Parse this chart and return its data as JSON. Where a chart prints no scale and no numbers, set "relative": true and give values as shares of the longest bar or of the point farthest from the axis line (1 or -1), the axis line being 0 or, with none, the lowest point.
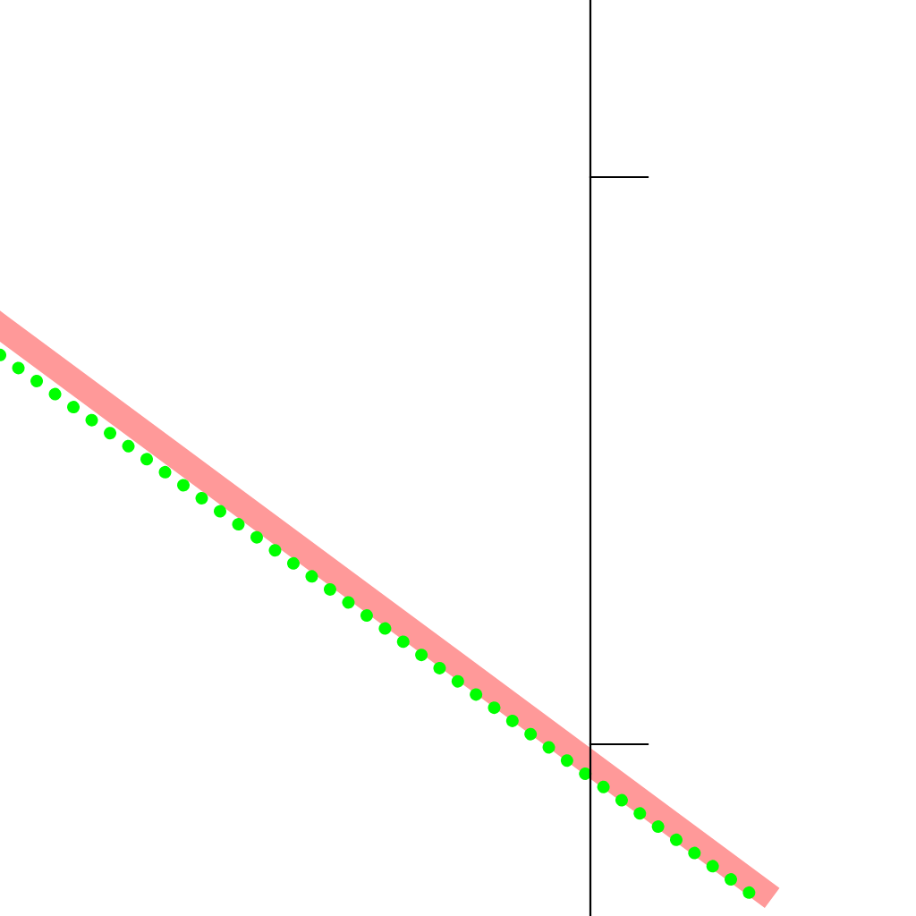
{
  "chart_data": {
    "type": "line",
    "relative": true,
    "categories": [
      null,
      null,
      null
    ],
    "series": [
      {
        "color": "#ff9999",
        "values": [
          1,
          0.51,
          0.02
        ],
        "line_style": "solid"
      },
      {
        "color": "#00ff00",
        "values": [
          0.95,
          0.48,
          0
        ],
        "line_style": "dotted"
      }
    ],
    "legend": false
  }
}
